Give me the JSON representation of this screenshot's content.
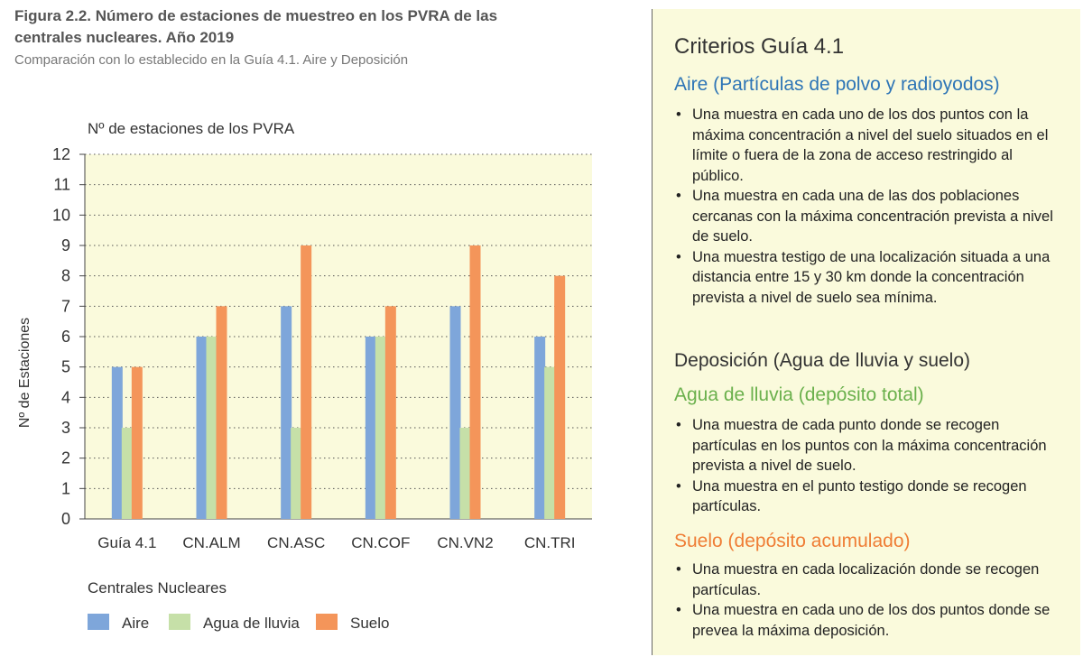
{
  "figure": {
    "title": "Figura 2.2. Número de estaciones de muestreo en los PVRA de las centrales nucleares. Año 2019",
    "subtitle": "Comparación con lo establecido en la Guía 4.1. Aire y Deposición"
  },
  "chart_data": {
    "type": "bar",
    "title": "Nº de estaciones de los PVRA",
    "xlabel": "Centrales Nucleares",
    "ylabel": "Nº de Estaciones",
    "ylim": [
      0,
      12
    ],
    "yticks": [
      0,
      1,
      2,
      3,
      4,
      5,
      6,
      7,
      8,
      9,
      10,
      11,
      12
    ],
    "grid": true,
    "legend_position": "bottom",
    "categories": [
      "Guía 4.1",
      "CN.ALM",
      "CN.ASC",
      "CN.COF",
      "CN.VN2",
      "CN.TRI"
    ],
    "series": [
      {
        "name": "Aire",
        "color": "#7ea6da",
        "values": [
          5,
          6,
          7,
          6,
          7,
          6
        ]
      },
      {
        "name": "Agua de lluvia",
        "color": "#c6e0a8",
        "values": [
          3,
          6,
          3,
          6,
          3,
          5
        ]
      },
      {
        "name": "Suelo",
        "color": "#f4955a",
        "values": [
          5,
          7,
          9,
          7,
          9,
          8
        ]
      }
    ]
  },
  "criteria": {
    "title": "Criterios Guía 4.1",
    "aire": {
      "heading": "Aire (Partículas de polvo y radioyodos)",
      "items": [
        "Una muestra en cada uno de los dos puntos con la máxima concentración a nivel del suelo situados en el límite o fuera de la zona de acceso restringido al público.",
        "Una muestra en cada una de las dos poblaciones cercanas con la máxima concentración prevista a nivel de suelo.",
        "Una muestra testigo de una localización situada a una distancia entre 15 y 30 km donde la concentración prevista a nivel de suelo sea mínima."
      ]
    },
    "deposicion": {
      "heading": "Deposición (Agua de lluvia y suelo)"
    },
    "lluvia": {
      "heading": "Agua de lluvia (depósito total)",
      "items": [
        "Una muestra de cada punto donde se recogen partículas en los puntos con la máxima concentración prevista a nivel de suelo.",
        "Una muestra en el punto testigo donde se recogen partículas."
      ]
    },
    "suelo": {
      "heading": "Suelo (depósito acumulado)",
      "items": [
        "Una muestra en cada localización donde se recogen partículas.",
        "Una  muestra en cada uno de los dos puntos donde se prevea la máxima deposición."
      ]
    }
  }
}
